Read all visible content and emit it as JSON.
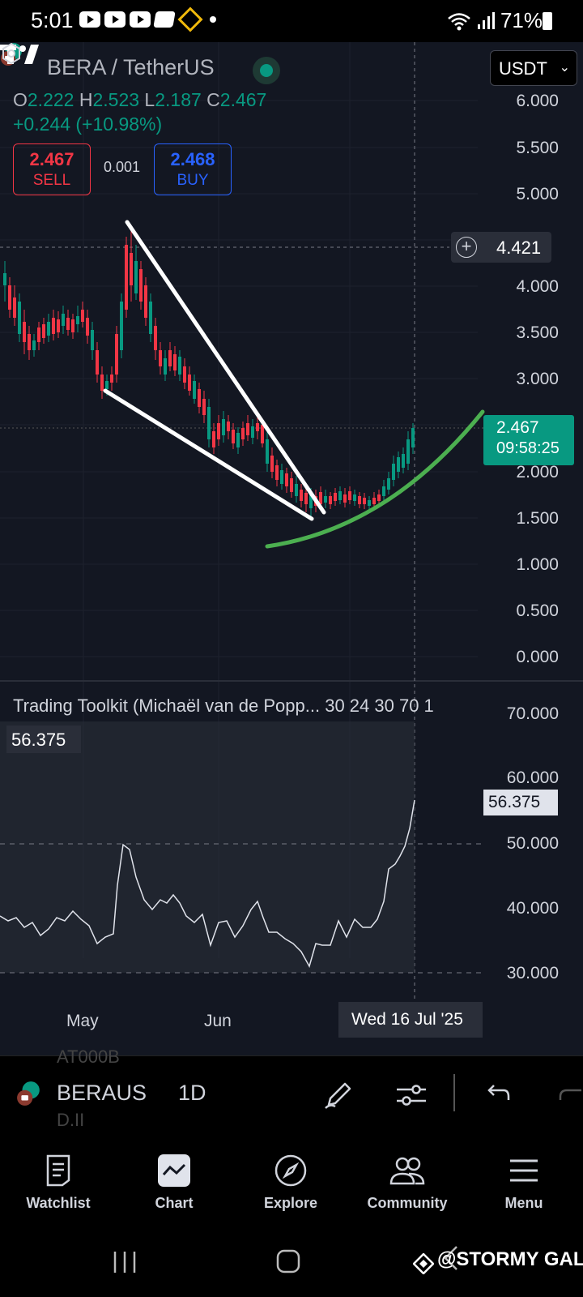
{
  "status_bar": {
    "time": "5:01",
    "battery": "71%",
    "icons": [
      "youtube-icon",
      "youtube-icon",
      "youtube-icon",
      "app-icon",
      "binance-icon",
      "dot-icon",
      "wifi-icon",
      "signal-icon",
      "battery-icon"
    ]
  },
  "header": {
    "symbol_title": "BERA / TetherUS",
    "currency": "USDT",
    "ohlc": {
      "o_label": "O",
      "o": "2.222",
      "h_label": "H",
      "h": "2.523",
      "l_label": "L",
      "l": "2.187",
      "c_label": "C",
      "c": "2.467"
    },
    "change": "+0.244 (+10.98%)",
    "sell": {
      "price": "2.467",
      "label": "SELL"
    },
    "spread": "0.001",
    "buy": {
      "price": "2.468",
      "label": "BUY"
    }
  },
  "price_axis": {
    "labels": [
      "6.000",
      "5.500",
      "5.000",
      "4.000",
      "3.500",
      "3.000",
      "2.000",
      "1.500",
      "1.000",
      "0.500",
      "0.000"
    ],
    "crosshair_price": "4.421",
    "last_price": "2.467",
    "countdown": "09:58:25"
  },
  "indicator": {
    "title": "Trading Toolkit (Michaël van de Popp... 30 24 30 70 1",
    "value": "56.375",
    "axis_labels": [
      "70.000",
      "60.000",
      "50.000",
      "40.000",
      "30.000"
    ],
    "last_value": "56.375"
  },
  "time_axis": {
    "labels": [
      "May",
      "Jun"
    ],
    "crosshair_date": "Wed 16 Jul '25"
  },
  "toolbar": {
    "ghost_top": "AT000B",
    "symbol": "BERAUS",
    "ghost_bottom": "D.II",
    "interval": "1D"
  },
  "bottom_nav": {
    "items": [
      {
        "label": "Watchlist",
        "icon": "watchlist-icon"
      },
      {
        "label": "Chart",
        "icon": "chart-icon"
      },
      {
        "label": "Explore",
        "icon": "compass-icon"
      },
      {
        "label": "Community",
        "icon": "community-icon"
      },
      {
        "label": "Menu",
        "icon": "menu-icon"
      }
    ]
  },
  "watermark": "@STORMY GAL",
  "colors": {
    "up": "#089981",
    "down": "#f23645",
    "background": "#131722",
    "trendline": "#ffffff",
    "curve": "#4caf50"
  }
}
